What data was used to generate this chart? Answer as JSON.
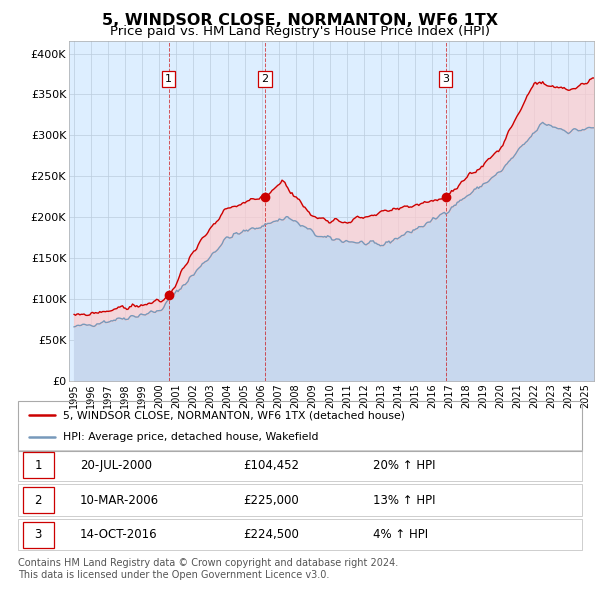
{
  "title": "5, WINDSOR CLOSE, NORMANTON, WF6 1TX",
  "subtitle": "Price paid vs. HM Land Registry's House Price Index (HPI)",
  "title_fontsize": 11.5,
  "subtitle_fontsize": 9.5,
  "ylabel_ticks": [
    "£0",
    "£50K",
    "£100K",
    "£150K",
    "£200K",
    "£250K",
    "£300K",
    "£350K",
    "£400K"
  ],
  "ytick_vals": [
    0,
    50000,
    100000,
    150000,
    200000,
    250000,
    300000,
    350000,
    400000
  ],
  "ylim": [
    0,
    415000
  ],
  "xlim_start": 1994.7,
  "xlim_end": 2025.5,
  "background_color": "#ffffff",
  "chart_bg_color": "#ddeeff",
  "grid_color": "#bbccdd",
  "red_color": "#cc0000",
  "blue_color": "#7799bb",
  "blue_fill_color": "#c8d8ee",
  "red_fill_color": "#f5cccc",
  "sale_dates": [
    2000.55,
    2006.19,
    2016.79
  ],
  "sale_prices": [
    104452,
    225000,
    224500
  ],
  "sale_labels": [
    "1",
    "2",
    "3"
  ],
  "legend_red_label": "5, WINDSOR CLOSE, NORMANTON, WF6 1TX (detached house)",
  "legend_blue_label": "HPI: Average price, detached house, Wakefield",
  "table_rows": [
    {
      "num": "1",
      "date": "20-JUL-2000",
      "price": "£104,452",
      "hpi": "20% ↑ HPI"
    },
    {
      "num": "2",
      "date": "10-MAR-2006",
      "price": "£225,000",
      "hpi": "13% ↑ HPI"
    },
    {
      "num": "3",
      "date": "14-OCT-2016",
      "price": "£224,500",
      "hpi": "4% ↑ HPI"
    }
  ],
  "footnote": "Contains HM Land Registry data © Crown copyright and database right 2024.\nThis data is licensed under the Open Government Licence v3.0.",
  "footnote_fontsize": 7.0
}
